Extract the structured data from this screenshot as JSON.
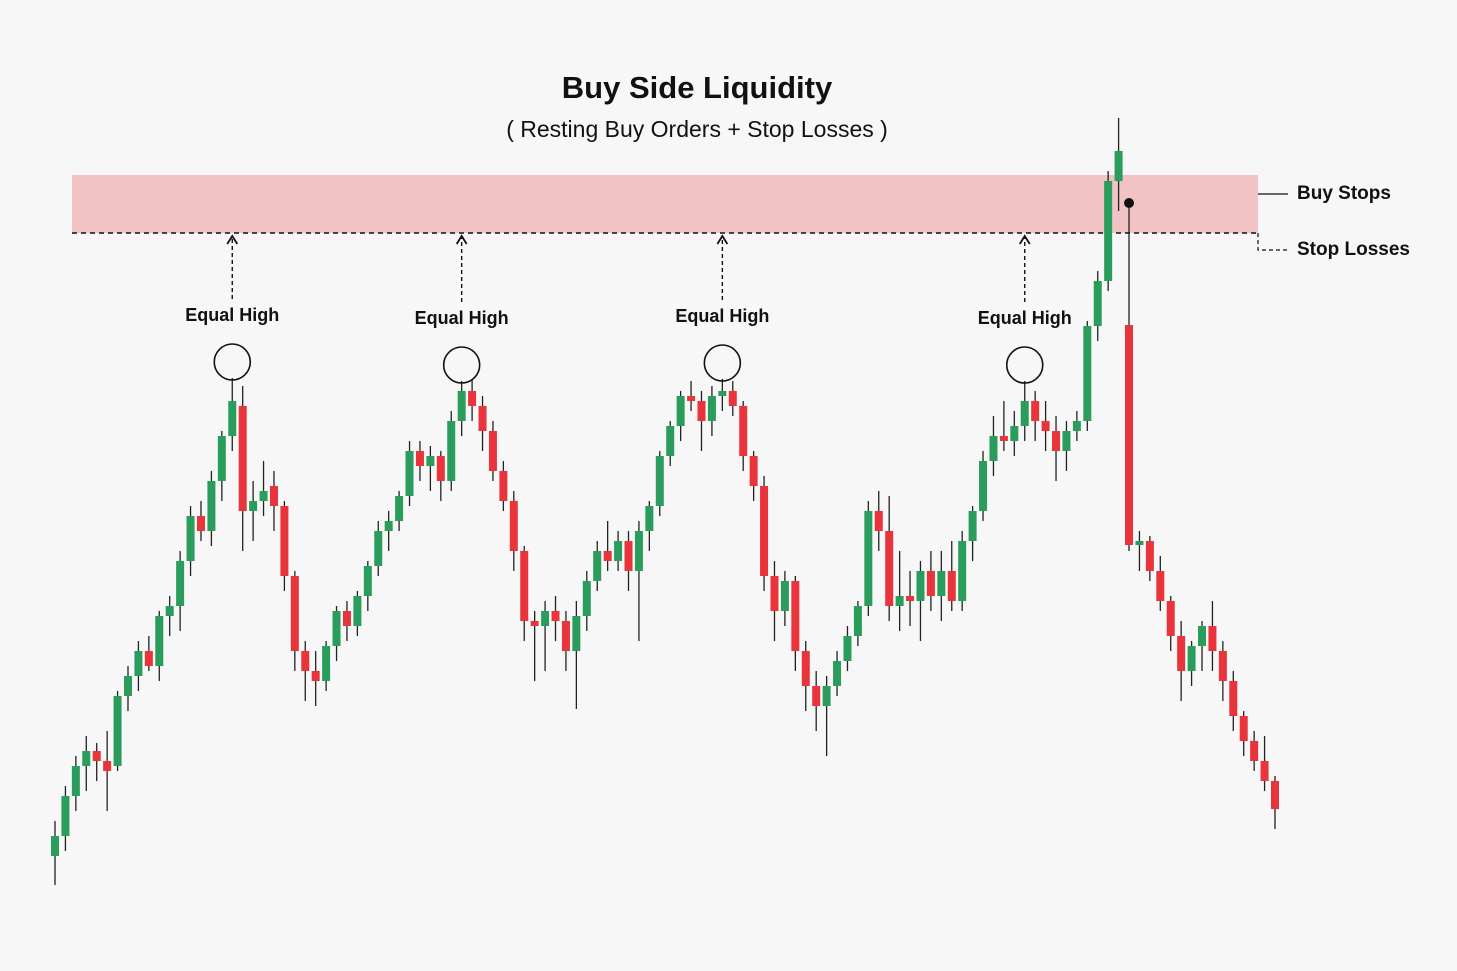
{
  "chart_data": {
    "type": "candlestick",
    "title": "Buy Side Liquidity",
    "subtitle": "( Resting Buy Orders + Stop Losses )",
    "ylim": [
      0,
      971
    ],
    "grid": false,
    "up_color": "#2a9d5c",
    "down_color": "#e8343a",
    "liquidity_zone": [
      738,
      796
    ],
    "zone_color": "#f2c3c5",
    "zone_labels": [
      "Buy Stops",
      "Stop Losses"
    ],
    "equal_high_labels": [
      "Equal High",
      "Equal High",
      "Equal High",
      "Equal High"
    ],
    "open": [
      115,
      135,
      175,
      205,
      220,
      210,
      205,
      275,
      295,
      320,
      305,
      355,
      365,
      410,
      455,
      440,
      490,
      535,
      565,
      460,
      470,
      485,
      465,
      395,
      320,
      300,
      290,
      325,
      360,
      345,
      375,
      405,
      440,
      450,
      475,
      520,
      505,
      515,
      490,
      550,
      580,
      565,
      540,
      500,
      470,
      420,
      350,
      345,
      360,
      350,
      320,
      355,
      390,
      420,
      410,
      430,
      400,
      440,
      465,
      515,
      545,
      575,
      570,
      550,
      575,
      580,
      565,
      515,
      485,
      395,
      360,
      390,
      320,
      285,
      265,
      285,
      310,
      335,
      365,
      460,
      440,
      365,
      375,
      370,
      400,
      375,
      400,
      370,
      430,
      460,
      510,
      535,
      530,
      545,
      570,
      550,
      540,
      520,
      540,
      550,
      645,
      690,
      790,
      646,
      426,
      430,
      400,
      370,
      335,
      300,
      325,
      345,
      320,
      290,
      255,
      230,
      210,
      190
    ],
    "high": [
      150,
      185,
      215,
      235,
      228,
      240,
      280,
      305,
      330,
      335,
      360,
      375,
      420,
      465,
      470,
      500,
      540,
      593,
      585,
      490,
      510,
      500,
      470,
      400,
      330,
      320,
      330,
      365,
      370,
      380,
      410,
      450,
      460,
      480,
      530,
      530,
      525,
      520,
      560,
      590,
      592,
      575,
      550,
      510,
      480,
      425,
      360,
      370,
      375,
      360,
      370,
      400,
      430,
      450,
      440,
      440,
      450,
      470,
      520,
      550,
      580,
      590,
      580,
      585,
      592,
      590,
      570,
      520,
      495,
      410,
      400,
      395,
      330,
      300,
      295,
      320,
      345,
      370,
      470,
      480,
      475,
      420,
      400,
      410,
      420,
      420,
      430,
      440,
      465,
      520,
      555,
      570,
      560,
      590,
      580,
      570,
      555,
      550,
      560,
      650,
      700,
      800,
      853,
      768,
      440,
      435,
      415,
      375,
      350,
      330,
      350,
      370,
      330,
      300,
      260,
      240,
      235,
      195
    ],
    "low": [
      86,
      120,
      160,
      180,
      190,
      160,
      200,
      260,
      280,
      300,
      290,
      335,
      340,
      395,
      430,
      425,
      470,
      520,
      420,
      430,
      455,
      440,
      380,
      300,
      270,
      265,
      280,
      310,
      330,
      335,
      360,
      395,
      420,
      440,
      465,
      490,
      480,
      470,
      480,
      535,
      550,
      520,
      490,
      460,
      400,
      330,
      290,
      300,
      330,
      300,
      262,
      340,
      380,
      400,
      400,
      380,
      330,
      420,
      455,
      505,
      530,
      560,
      520,
      535,
      560,
      555,
      500,
      470,
      380,
      330,
      345,
      300,
      260,
      240,
      215,
      275,
      300,
      325,
      355,
      420,
      350,
      340,
      345,
      330,
      360,
      350,
      360,
      360,
      410,
      450,
      495,
      520,
      515,
      530,
      530,
      520,
      490,
      500,
      530,
      540,
      630,
      680,
      760,
      420,
      400,
      390,
      360,
      320,
      270,
      285,
      300,
      300,
      270,
      240,
      215,
      200,
      180,
      142
    ],
    "close": [
      135,
      175,
      205,
      220,
      210,
      200,
      275,
      295,
      320,
      305,
      355,
      365,
      410,
      455,
      440,
      490,
      535,
      570,
      460,
      470,
      480,
      465,
      395,
      320,
      300,
      290,
      325,
      360,
      345,
      375,
      405,
      440,
      450,
      475,
      520,
      505,
      515,
      490,
      550,
      580,
      565,
      540,
      500,
      470,
      420,
      350,
      345,
      360,
      350,
      320,
      355,
      390,
      420,
      410,
      430,
      400,
      440,
      465,
      515,
      545,
      575,
      570,
      550,
      575,
      580,
      565,
      515,
      485,
      395,
      360,
      390,
      320,
      285,
      265,
      285,
      310,
      335,
      365,
      460,
      440,
      365,
      375,
      370,
      400,
      375,
      400,
      370,
      430,
      460,
      510,
      535,
      530,
      545,
      570,
      550,
      540,
      520,
      540,
      550,
      645,
      690,
      790,
      820,
      426,
      430,
      400,
      370,
      335,
      300,
      325,
      345,
      320,
      290,
      255,
      230,
      210,
      190,
      162
    ]
  }
}
